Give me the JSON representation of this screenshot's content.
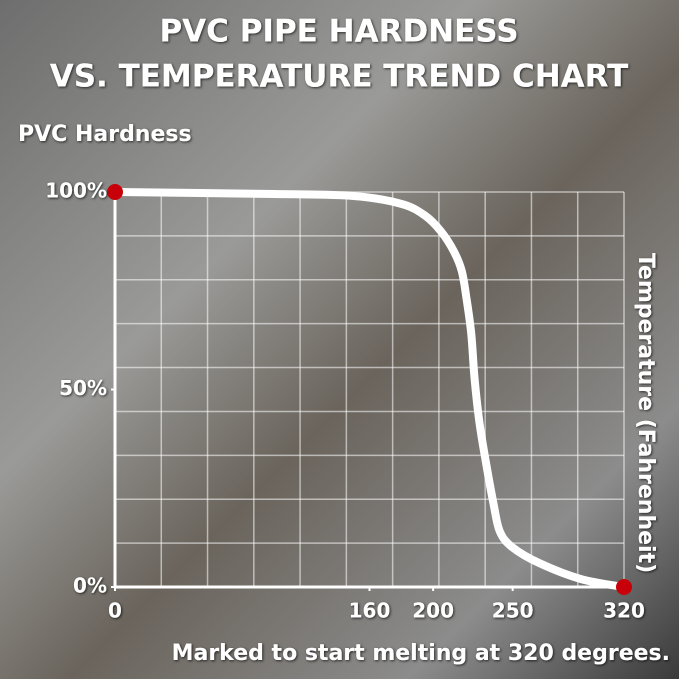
{
  "chart_data": {
    "type": "line",
    "title": [
      "PVC PIPE HARDNESS",
      "VS. TEMPERATURE TREND CHART"
    ],
    "y_label": "PVC Hardness",
    "x_label": "Temperature (Fahrenheit)",
    "annotation": "Marked to start melting at 320 degrees.",
    "x": [
      0,
      100,
      150,
      180,
      195,
      205,
      213,
      218,
      221,
      224,
      226,
      229,
      233,
      238,
      242,
      250,
      267,
      293,
      320
    ],
    "series": [
      {
        "name": "PVC Hardness",
        "color": "#ffffff",
        "values": [
          100,
          99.5,
          99,
          97,
          94,
          90,
          85,
          80,
          73,
          64,
          53,
          42,
          32,
          21,
          14,
          10,
          6,
          2,
          0
        ]
      }
    ],
    "endpoint_color": "#c8000a",
    "xlim": [
      0,
      320
    ],
    "xticks": [
      0,
      160,
      200,
      250,
      320
    ],
    "ylim": [
      0,
      100
    ],
    "yticks": [
      {
        "value": 0,
        "label": "0%"
      },
      {
        "value": 50,
        "label": "50%"
      },
      {
        "value": 100,
        "label": "100%"
      }
    ],
    "grid": true
  }
}
